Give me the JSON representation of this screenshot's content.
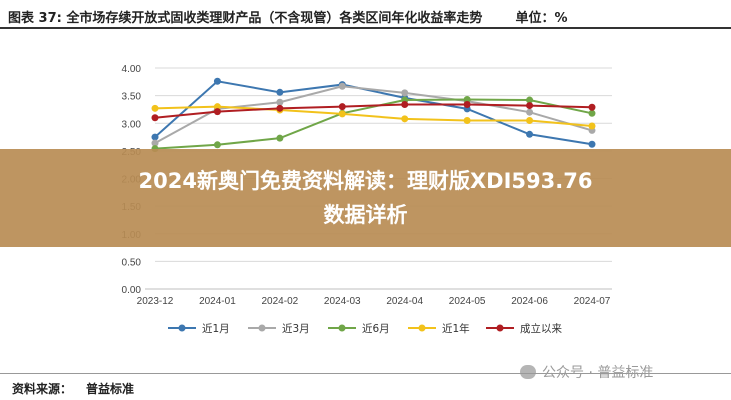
{
  "figure": {
    "number_label": "图表 37:",
    "title": "全市场存续开放式固收类理财产品（不含现管）各类区间年化收益率走势",
    "unit": "单位：%"
  },
  "banner": {
    "line1": "2024新奥门免费资料解读：理财版XDI593.76",
    "line2": "数据详析"
  },
  "watermark": "公众号 · 普益标准",
  "source": {
    "label": "资料来源：",
    "value": "普益标准"
  },
  "chart_data": {
    "type": "line",
    "categories": [
      "2023-12",
      "2024-01",
      "2024-02",
      "2024-03",
      "2024-04",
      "2024-05",
      "2024-06",
      "2024-07"
    ],
    "yticks": [
      "0.00",
      "0.50",
      "1.00",
      "1.50",
      "2.00",
      "2.50",
      "3.00",
      "3.50",
      "4.00"
    ],
    "ylim": [
      0,
      4
    ],
    "grid": true,
    "legend_position": "bottom",
    "series": [
      {
        "name": "近1月",
        "color": "#3d77b0",
        "values": [
          2.75,
          3.76,
          3.56,
          3.7,
          3.46,
          3.26,
          2.8,
          2.62
        ]
      },
      {
        "name": "近3月",
        "color": "#a9a9a9",
        "values": [
          2.64,
          3.26,
          3.38,
          3.67,
          3.55,
          3.4,
          3.2,
          2.87
        ]
      },
      {
        "name": "近6月",
        "color": "#70a648",
        "values": [
          2.54,
          2.61,
          2.73,
          3.18,
          3.42,
          3.43,
          3.42,
          3.18
        ]
      },
      {
        "name": "近1年",
        "color": "#f2c21b",
        "values": [
          3.27,
          3.3,
          3.24,
          3.17,
          3.08,
          3.05,
          3.05,
          2.95
        ]
      },
      {
        "name": "成立以来",
        "color": "#b01e22",
        "values": [
          3.1,
          3.21,
          3.27,
          3.3,
          3.34,
          3.34,
          3.32,
          3.29
        ]
      }
    ]
  }
}
